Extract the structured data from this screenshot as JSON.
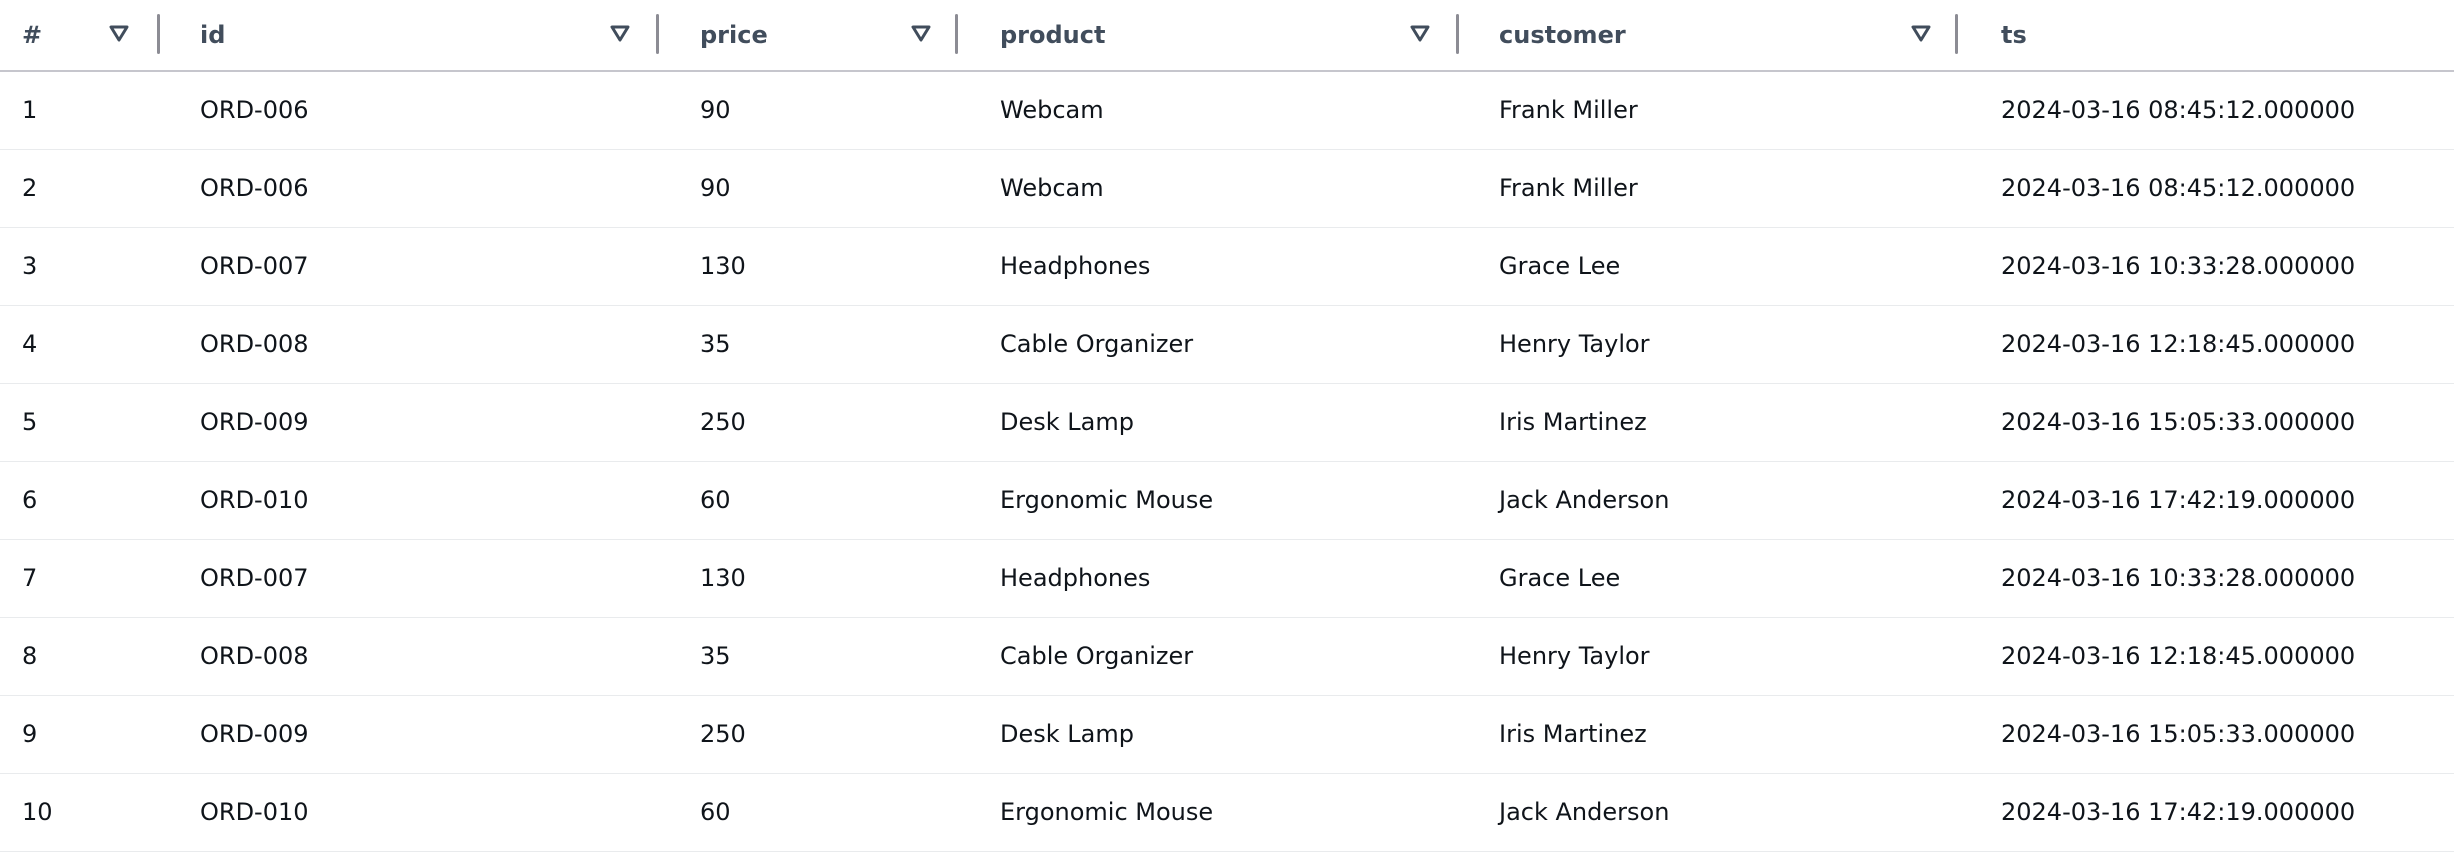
{
  "columns": [
    {
      "label": "#",
      "filter": true
    },
    {
      "label": "id",
      "filter": true
    },
    {
      "label": "price",
      "filter": true
    },
    {
      "label": "product",
      "filter": true
    },
    {
      "label": "customer",
      "filter": true
    },
    {
      "label": "ts",
      "filter": false
    }
  ],
  "icons": {
    "filter": "filter-triangle-icon"
  },
  "rows": [
    [
      "1",
      "ORD-006",
      "90",
      "Webcam",
      "Frank Miller",
      "2024-03-16 08:45:12.000000"
    ],
    [
      "2",
      "ORD-006",
      "90",
      "Webcam",
      "Frank Miller",
      "2024-03-16 08:45:12.000000"
    ],
    [
      "3",
      "ORD-007",
      "130",
      "Headphones",
      "Grace Lee",
      "2024-03-16 10:33:28.000000"
    ],
    [
      "4",
      "ORD-008",
      "35",
      "Cable Organizer",
      "Henry Taylor",
      "2024-03-16 12:18:45.000000"
    ],
    [
      "5",
      "ORD-009",
      "250",
      "Desk Lamp",
      "Iris Martinez",
      "2024-03-16 15:05:33.000000"
    ],
    [
      "6",
      "ORD-010",
      "60",
      "Ergonomic Mouse",
      "Jack Anderson",
      "2024-03-16 17:42:19.000000"
    ],
    [
      "7",
      "ORD-007",
      "130",
      "Headphones",
      "Grace Lee",
      "2024-03-16 10:33:28.000000"
    ],
    [
      "8",
      "ORD-008",
      "35",
      "Cable Organizer",
      "Henry Taylor",
      "2024-03-16 12:18:45.000000"
    ],
    [
      "9",
      "ORD-009",
      "250",
      "Desk Lamp",
      "Iris Martinez",
      "2024-03-16 15:05:33.000000"
    ],
    [
      "10",
      "ORD-010",
      "60",
      "Ergonomic Mouse",
      "Jack Anderson",
      "2024-03-16 17:42:19.000000"
    ]
  ]
}
